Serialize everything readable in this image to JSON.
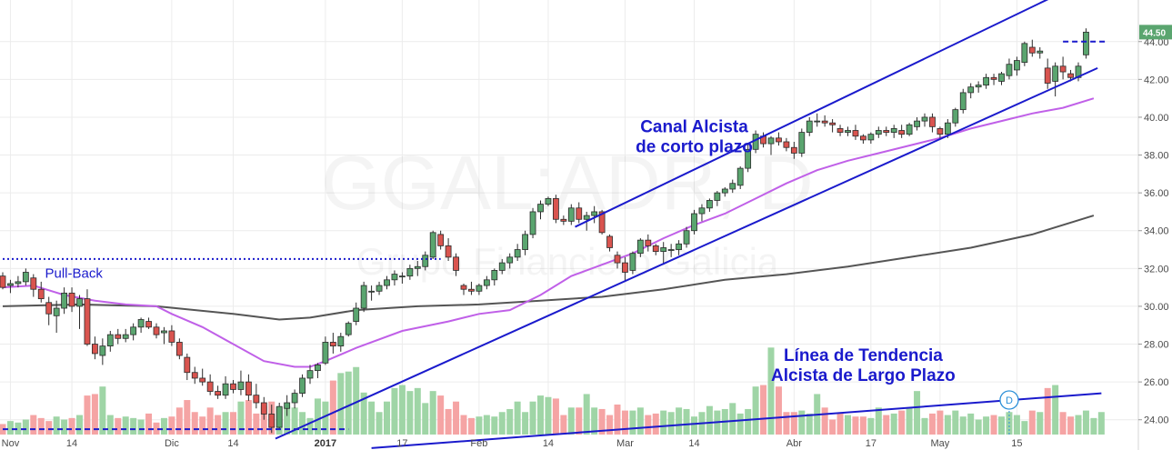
{
  "chart_data": {
    "type": "candlestick",
    "watermark": {
      "symbol": "GGAL:ADR, D",
      "name": "Grupo Financiero Galicia"
    },
    "y_axis": {
      "ticks": [
        "24.00",
        "26.00",
        "28.00",
        "30.00",
        "32.00",
        "34.00",
        "36.00",
        "38.00",
        "40.00",
        "42.00",
        "44.00"
      ],
      "range": [
        22.4,
        46.2
      ]
    },
    "x_axis": {
      "labels": [
        {
          "text": "Nov",
          "day": 1
        },
        {
          "text": "14",
          "day": 9
        },
        {
          "text": "Dic",
          "day": 22
        },
        {
          "text": "14",
          "day": 30
        },
        {
          "text": "2017",
          "day": 42,
          "bold": true
        },
        {
          "text": "17",
          "day": 52
        },
        {
          "text": "Feb",
          "day": 62
        },
        {
          "text": "14",
          "day": 71
        },
        {
          "text": "Mar",
          "day": 81
        },
        {
          "text": "14",
          "day": 90
        },
        {
          "text": "Abr",
          "day": 103
        },
        {
          "text": "17",
          "day": 113
        },
        {
          "text": "May",
          "day": 122
        },
        {
          "text": "15",
          "day": 132
        }
      ]
    },
    "last_price": "44.50",
    "colors": {
      "up": "#5aa56f",
      "down": "#d9544f",
      "vol_up": "#9fd5a6",
      "vol_down": "#f5a4a4",
      "ma50": "#c060e8",
      "ma200": "#555555",
      "lines": "#1a1acc",
      "grid": "#ececec"
    },
    "ohlc": [
      [
        31.6,
        31.8,
        30.9,
        31.0
      ],
      [
        31.1,
        31.4,
        30.7,
        31.2
      ],
      [
        31.2,
        31.6,
        31.0,
        31.3
      ],
      [
        31.3,
        32.0,
        31.1,
        31.8
      ],
      [
        31.5,
        31.7,
        30.5,
        30.9
      ],
      [
        30.9,
        31.3,
        30.2,
        30.4
      ],
      [
        30.2,
        30.5,
        29.0,
        29.6
      ],
      [
        29.5,
        30.3,
        28.6,
        29.9
      ],
      [
        29.9,
        31.0,
        29.6,
        30.7
      ],
      [
        30.7,
        31.0,
        29.7,
        30.0
      ],
      [
        30.0,
        30.6,
        28.8,
        30.4
      ],
      [
        30.4,
        30.9,
        27.9,
        28.0
      ],
      [
        28.0,
        28.4,
        27.2,
        27.5
      ],
      [
        27.4,
        28.3,
        26.9,
        27.9
      ],
      [
        27.9,
        28.7,
        27.6,
        28.5
      ],
      [
        28.5,
        28.8,
        28.0,
        28.3
      ],
      [
        28.3,
        28.8,
        28.1,
        28.5
      ],
      [
        28.5,
        29.1,
        28.2,
        28.9
      ],
      [
        28.9,
        29.4,
        28.6,
        29.3
      ],
      [
        29.2,
        29.4,
        28.8,
        28.9
      ],
      [
        28.9,
        29.1,
        28.3,
        28.5
      ],
      [
        28.6,
        28.9,
        28.0,
        28.7
      ],
      [
        28.7,
        29.0,
        27.9,
        28.1
      ],
      [
        28.1,
        28.3,
        27.2,
        27.4
      ],
      [
        27.3,
        27.5,
        26.1,
        26.5
      ],
      [
        26.5,
        26.8,
        25.9,
        26.2
      ],
      [
        26.2,
        26.7,
        25.8,
        26.0
      ],
      [
        26.0,
        26.4,
        25.3,
        25.5
      ],
      [
        25.5,
        25.8,
        25.1,
        25.3
      ],
      [
        25.3,
        26.3,
        25.1,
        25.9
      ],
      [
        25.9,
        26.1,
        25.4,
        25.6
      ],
      [
        25.6,
        26.6,
        25.3,
        26.0
      ],
      [
        26.0,
        26.4,
        25.0,
        25.3
      ],
      [
        25.3,
        25.9,
        24.6,
        24.9
      ],
      [
        24.9,
        25.2,
        24.0,
        24.3
      ],
      [
        24.3,
        24.8,
        23.3,
        23.6
      ],
      [
        23.6,
        24.9,
        23.5,
        24.7
      ],
      [
        24.6,
        25.3,
        24.2,
        24.9
      ],
      [
        24.9,
        25.6,
        24.6,
        25.4
      ],
      [
        25.4,
        26.4,
        25.2,
        26.2
      ],
      [
        26.2,
        26.9,
        25.9,
        26.6
      ],
      [
        26.6,
        27.0,
        26.2,
        26.9
      ],
      [
        27.0,
        28.4,
        26.9,
        28.1
      ],
      [
        28.1,
        28.6,
        27.5,
        27.9
      ],
      [
        27.9,
        28.6,
        27.6,
        28.4
      ],
      [
        28.5,
        29.2,
        28.4,
        29.1
      ],
      [
        29.2,
        30.2,
        29.0,
        29.9
      ],
      [
        29.9,
        31.3,
        29.7,
        31.1
      ],
      [
        30.8,
        31.1,
        30.3,
        30.8
      ],
      [
        30.8,
        31.3,
        30.6,
        31.1
      ],
      [
        31.1,
        31.6,
        30.9,
        31.4
      ],
      [
        31.4,
        31.9,
        31.1,
        31.7
      ],
      [
        31.6,
        31.8,
        31.2,
        31.6
      ],
      [
        31.6,
        32.2,
        31.4,
        32.0
      ],
      [
        32.0,
        32.4,
        31.6,
        32.1
      ],
      [
        32.1,
        32.9,
        31.9,
        32.7
      ],
      [
        32.6,
        34.0,
        32.5,
        33.9
      ],
      [
        33.8,
        34.0,
        33.0,
        33.2
      ],
      [
        33.2,
        33.6,
        32.4,
        32.6
      ],
      [
        32.6,
        32.8,
        31.6,
        31.9
      ],
      [
        31.1,
        31.2,
        30.6,
        30.9
      ],
      [
        30.9,
        31.3,
        30.6,
        30.8
      ],
      [
        30.8,
        31.2,
        30.6,
        31.1
      ],
      [
        31.1,
        31.6,
        30.9,
        31.4
      ],
      [
        31.4,
        32.0,
        31.1,
        31.9
      ],
      [
        31.9,
        32.5,
        31.7,
        32.3
      ],
      [
        32.3,
        32.8,
        32.0,
        32.6
      ],
      [
        32.6,
        33.3,
        32.4,
        33.0
      ],
      [
        33.0,
        34.0,
        32.7,
        33.8
      ],
      [
        33.8,
        35.2,
        33.6,
        35.0
      ],
      [
        35.0,
        35.6,
        34.6,
        35.4
      ],
      [
        35.4,
        35.8,
        35.3,
        35.7
      ],
      [
        35.7,
        35.9,
        34.4,
        34.6
      ],
      [
        34.6,
        34.8,
        34.3,
        34.5
      ],
      [
        34.5,
        35.4,
        34.3,
        35.2
      ],
      [
        35.2,
        35.5,
        34.4,
        34.6
      ],
      [
        34.6,
        35.0,
        34.0,
        34.8
      ],
      [
        34.8,
        35.3,
        34.4,
        35.0
      ],
      [
        35.0,
        35.1,
        33.8,
        33.9
      ],
      [
        33.7,
        33.8,
        32.9,
        33.1
      ],
      [
        32.7,
        32.9,
        32.0,
        32.3
      ],
      [
        32.3,
        32.6,
        31.3,
        31.8
      ],
      [
        31.9,
        32.9,
        31.7,
        32.8
      ],
      [
        32.8,
        33.6,
        32.6,
        33.5
      ],
      [
        33.5,
        33.8,
        32.9,
        33.2
      ],
      [
        33.2,
        33.3,
        32.7,
        32.9
      ],
      [
        32.9,
        33.4,
        32.2,
        33.1
      ],
      [
        33.0,
        33.3,
        32.6,
        33.0
      ],
      [
        33.0,
        33.5,
        32.7,
        33.3
      ],
      [
        33.3,
        34.2,
        33.1,
        34.0
      ],
      [
        34.0,
        35.1,
        33.8,
        34.9
      ],
      [
        34.9,
        35.4,
        34.5,
        35.2
      ],
      [
        35.2,
        35.7,
        35.0,
        35.6
      ],
      [
        35.6,
        36.1,
        35.3,
        36.0
      ],
      [
        36.0,
        36.3,
        35.8,
        36.2
      ],
      [
        36.2,
        36.7,
        36.0,
        36.5
      ],
      [
        36.4,
        37.4,
        36.2,
        37.3
      ],
      [
        37.3,
        38.6,
        37.1,
        38.3
      ],
      [
        38.3,
        39.3,
        38.1,
        39.1
      ],
      [
        39.0,
        39.2,
        38.4,
        38.6
      ],
      [
        38.6,
        39.0,
        38.0,
        38.9
      ],
      [
        38.9,
        39.2,
        38.5,
        38.7
      ],
      [
        38.7,
        38.9,
        38.2,
        38.4
      ],
      [
        38.4,
        38.7,
        37.8,
        38.1
      ],
      [
        38.1,
        39.4,
        37.9,
        39.2
      ],
      [
        39.2,
        40.0,
        39.0,
        39.8
      ],
      [
        39.8,
        40.2,
        39.5,
        39.8
      ],
      [
        39.8,
        40.1,
        39.5,
        39.7
      ],
      [
        39.7,
        39.9,
        39.2,
        39.6
      ],
      [
        39.4,
        39.6,
        39.0,
        39.2
      ],
      [
        39.2,
        39.5,
        39.0,
        39.3
      ],
      [
        39.3,
        39.6,
        38.8,
        39.0
      ],
      [
        39.0,
        39.1,
        38.6,
        38.8
      ],
      [
        38.8,
        39.2,
        38.6,
        39.1
      ],
      [
        39.1,
        39.5,
        38.9,
        39.3
      ],
      [
        39.3,
        39.5,
        39.0,
        39.2
      ],
      [
        39.2,
        39.6,
        38.9,
        39.4
      ],
      [
        39.3,
        39.6,
        38.9,
        39.1
      ],
      [
        39.1,
        39.7,
        39.0,
        39.6
      ],
      [
        39.5,
        40.0,
        39.3,
        39.8
      ],
      [
        39.8,
        40.2,
        39.5,
        40.0
      ],
      [
        40.0,
        40.2,
        39.2,
        39.5
      ],
      [
        39.4,
        39.5,
        38.9,
        39.1
      ],
      [
        39.1,
        39.9,
        38.9,
        39.7
      ],
      [
        39.7,
        40.5,
        39.5,
        40.4
      ],
      [
        40.4,
        41.5,
        40.2,
        41.3
      ],
      [
        41.3,
        41.8,
        41.0,
        41.6
      ],
      [
        41.6,
        41.9,
        41.3,
        41.7
      ],
      [
        41.7,
        42.3,
        41.5,
        42.1
      ],
      [
        42.1,
        42.3,
        41.7,
        42.0
      ],
      [
        41.9,
        42.4,
        41.7,
        42.3
      ],
      [
        42.2,
        43.1,
        42.0,
        42.8
      ],
      [
        42.5,
        43.2,
        42.2,
        43.0
      ],
      [
        42.9,
        44.0,
        42.7,
        43.9
      ],
      [
        43.7,
        44.1,
        43.2,
        43.4
      ],
      [
        43.4,
        43.7,
        43.1,
        43.5
      ],
      [
        42.6,
        43.1,
        41.5,
        41.8
      ],
      [
        41.9,
        42.9,
        41.1,
        42.7
      ],
      [
        42.7,
        43.2,
        42.0,
        42.4
      ],
      [
        42.3,
        42.5,
        41.9,
        42.1
      ],
      [
        42.1,
        42.9,
        41.9,
        42.7
      ],
      [
        43.3,
        44.7,
        43.1,
        44.5
      ]
    ],
    "volume": [
      0.7,
      0.9,
      0.8,
      1.0,
      1.3,
      1.1,
      0.9,
      1.2,
      1.0,
      1.1,
      1.3,
      2.6,
      2.7,
      3.2,
      1.3,
      1.1,
      1.2,
      1.1,
      1.0,
      1.4,
      0.8,
      1.1,
      1.2,
      1.8,
      2.3,
      1.5,
      1.2,
      1.8,
      1.3,
      1.5,
      1.5,
      2.2,
      2.3,
      1.4,
      1.9,
      2.2,
      1.8,
      1.9,
      1.8,
      1.5,
      1.1,
      2.4,
      2.2,
      3.6,
      4.1,
      4.2,
      4.5,
      2.8,
      2.2,
      1.5,
      2.2,
      3.1,
      3.3,
      2.9,
      3.1,
      2.1,
      2.9,
      2.6,
      1.7,
      2.2,
      1.3,
      1.1,
      1.2,
      1.3,
      1.2,
      1.5,
      1.7,
      2.2,
      1.5,
      2.2,
      2.6,
      2.5,
      2.4,
      1.3,
      1.8,
      1.8,
      2.7,
      1.8,
      1.7,
      1.3,
      2.0,
      1.6,
      1.6,
      1.8,
      1.3,
      1.4,
      1.6,
      1.5,
      1.8,
      1.7,
      1.2,
      1.5,
      1.9,
      1.6,
      1.7,
      2.1,
      1.4,
      1.7,
      3.2,
      3.3,
      5.8,
      3.2,
      1.5,
      1.5,
      1.6,
      1.4,
      2.7,
      1.8,
      1.0,
      1.4,
      1.3,
      1.2,
      1.2,
      1.1,
      1.8,
      1.3,
      1.4,
      1.6,
      1.8,
      2.9,
      1.1,
      1.4,
      1.6,
      1.3,
      1.6,
      1.2,
      1.4,
      1.0,
      1.2,
      1.3,
      1.2,
      1.5,
      1.3,
      0.9,
      1.6,
      1.5,
      3.1,
      3.3,
      1.5,
      1.2,
      1.3,
      1.6,
      1.1,
      1.5
    ],
    "ma50": [
      [
        0,
        31.0
      ],
      [
        4,
        31.1
      ],
      [
        8,
        30.6
      ],
      [
        12,
        30.3
      ],
      [
        16,
        30.1
      ],
      [
        20,
        30.0
      ],
      [
        22,
        29.6
      ],
      [
        26,
        28.9
      ],
      [
        30,
        28.0
      ],
      [
        34,
        27.1
      ],
      [
        38,
        26.8
      ],
      [
        40,
        26.8
      ],
      [
        42,
        27.1
      ],
      [
        46,
        27.8
      ],
      [
        52,
        28.7
      ],
      [
        58,
        29.2
      ],
      [
        62,
        29.6
      ],
      [
        66,
        29.8
      ],
      [
        70,
        30.6
      ],
      [
        74,
        31.6
      ],
      [
        78,
        32.2
      ],
      [
        82,
        32.8
      ],
      [
        86,
        33.6
      ],
      [
        90,
        34.3
      ],
      [
        94,
        34.9
      ],
      [
        98,
        35.7
      ],
      [
        102,
        36.5
      ],
      [
        106,
        37.2
      ],
      [
        110,
        37.7
      ],
      [
        114,
        38.1
      ],
      [
        118,
        38.5
      ],
      [
        122,
        38.9
      ],
      [
        126,
        39.4
      ],
      [
        130,
        39.8
      ],
      [
        134,
        40.2
      ],
      [
        138,
        40.5
      ],
      [
        142,
        41.0
      ]
    ],
    "ma200": [
      [
        0,
        30.0
      ],
      [
        10,
        30.1
      ],
      [
        20,
        30.0
      ],
      [
        30,
        29.6
      ],
      [
        36,
        29.3
      ],
      [
        40,
        29.4
      ],
      [
        46,
        29.8
      ],
      [
        54,
        30.0
      ],
      [
        62,
        30.1
      ],
      [
        70,
        30.3
      ],
      [
        78,
        30.5
      ],
      [
        86,
        30.9
      ],
      [
        94,
        31.4
      ],
      [
        102,
        31.7
      ],
      [
        110,
        32.1
      ],
      [
        118,
        32.6
      ],
      [
        126,
        33.1
      ],
      [
        134,
        33.8
      ],
      [
        142,
        34.8
      ]
    ],
    "annotations": [
      {
        "type": "text",
        "lines": [
          "Canal Alcista",
          "de corto plazo"
        ],
        "day": 90,
        "price": 39.2,
        "style": "bold"
      },
      {
        "type": "text",
        "lines": [
          "Línea de Tendencia",
          "Alcista de Largo Plazo"
        ],
        "day": 112,
        "price": 27.1,
        "style": "bold"
      },
      {
        "type": "text",
        "lines": [
          "Pull-Back"
        ],
        "day": 5.5,
        "price": 31.5,
        "style": "small"
      },
      {
        "type": "line",
        "from": [
          35.5,
          23.0
        ],
        "to": [
          142.5,
          42.6
        ],
        "color": "#1a1acc",
        "width": 2
      },
      {
        "type": "line",
        "from": [
          74.5,
          34.2
        ],
        "to": [
          143,
          47.6
        ],
        "color": "#1a1acc",
        "width": 2
      },
      {
        "type": "line",
        "from": [
          48,
          22.5
        ],
        "to": [
          143,
          25.4
        ],
        "color": "#1a1acc",
        "width": 2
      },
      {
        "type": "hline",
        "from": 0,
        "to": 45,
        "price": 23.5,
        "dash": "6,4",
        "color": "#1a1acc",
        "width": 2
      },
      {
        "type": "hline",
        "from": 0,
        "to": 57,
        "price": 32.5,
        "dash": "2,3",
        "color": "#1a1acc",
        "width": 2
      },
      {
        "type": "hline",
        "from": 138,
        "to": 143.5,
        "price": 44.0,
        "dash": "6,4",
        "color": "#1a1acc",
        "width": 2
      }
    ],
    "dividend_marker": {
      "label": "D",
      "day": 131
    }
  }
}
